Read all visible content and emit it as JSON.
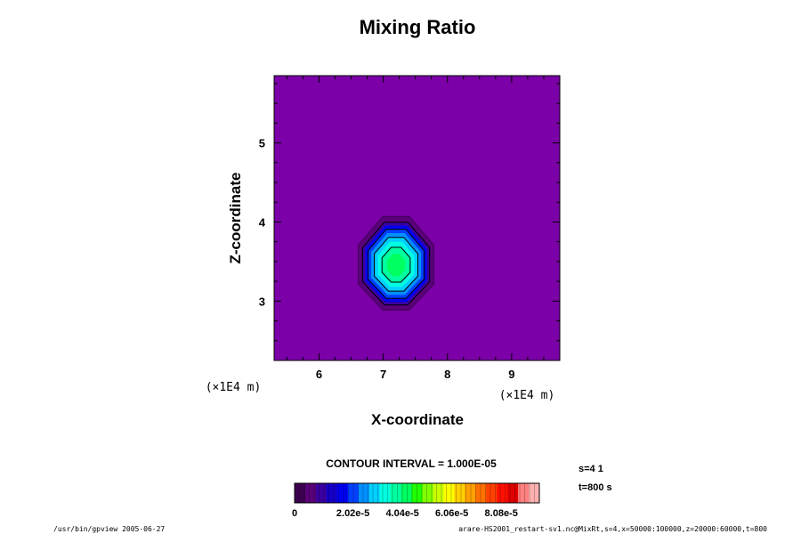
{
  "chart_data": {
    "type": "heatmap",
    "title": "Mixing Ratio",
    "xlabel": "X-coordinate",
    "ylabel": "Z-coordinate",
    "x_unit": "(×1E4 m)",
    "y_unit": "(×1E4 m)",
    "xlim": [
      5.3,
      9.75
    ],
    "ylim": [
      2.25,
      5.85
    ],
    "x_ticks": [
      6,
      7,
      8,
      9
    ],
    "y_ticks": [
      3,
      4,
      5
    ],
    "x_tick_labels": [
      "6",
      "7",
      "8",
      "9"
    ],
    "y_tick_labels": [
      "3",
      "4",
      "5"
    ],
    "grid": false,
    "contour_interval_label": "CONTOUR INTERVAL = 1.000E-05",
    "field": {
      "center": [
        7.2,
        3.45
      ],
      "radius_x": 0.65,
      "radius_y": 0.62,
      "peak": 5e-05,
      "background": 0,
      "levels": [
        1e-06,
        3e-06,
        6e-06,
        1e-05,
        2e-05,
        3e-05,
        4e-05
      ]
    },
    "colorbar": {
      "min": 0,
      "max": 0.0001,
      "tick_values": [
        0,
        2.02e-05,
        4.04e-05,
        6.06e-05,
        8.08e-05
      ],
      "tick_labels": [
        "0",
        "2.02e-5",
        "4.04e-5",
        "6.06e-5",
        "8.08e-5"
      ],
      "colors": [
        "#3d0050",
        "#5a007a",
        "#3a00a0",
        "#1400c8",
        "#0000f0",
        "#0040ff",
        "#0090ff",
        "#00d0ff",
        "#00ffe0",
        "#00ffa0",
        "#00ff60",
        "#20ff00",
        "#80ff00",
        "#c8ff00",
        "#ffff00",
        "#ffd000",
        "#ffa000",
        "#ff7000",
        "#ff4000",
        "#ff1000",
        "#e00000",
        "#ff8080",
        "#ffb0b0"
      ]
    },
    "annotations": {
      "slice_index": "s=4 1",
      "time": "t=800 s"
    }
  },
  "footer": {
    "left": "/usr/bin/gpview 2005-06-27",
    "right": "arare-HS2001_restart-sv1.nc@MixRt,s=4,x=50000:100000,z=20000:60000,t=800"
  },
  "colors": {
    "background_fill": "#7b00a8",
    "contour_line": "#000000"
  }
}
